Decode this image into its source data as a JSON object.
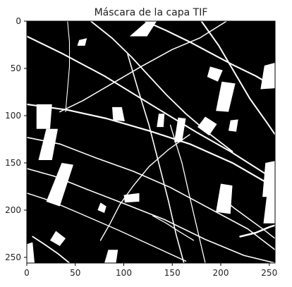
{
  "chart_data": {
    "type": "heatmap",
    "title": "Máscara de la capa TIF",
    "xlabel": "",
    "ylabel": "",
    "xlim": [
      0,
      256
    ],
    "ylim": [
      256,
      0
    ],
    "x_ticks": [
      {
        "value": 0,
        "label": "0"
      },
      {
        "value": 50,
        "label": "50"
      },
      {
        "value": 100,
        "label": "100"
      },
      {
        "value": 150,
        "label": "150"
      },
      {
        "value": 200,
        "label": "200"
      },
      {
        "value": 250,
        "label": "250"
      }
    ],
    "y_ticks": [
      {
        "value": 0,
        "label": "0"
      },
      {
        "value": 50,
        "label": "50"
      },
      {
        "value": 100,
        "label": "100"
      },
      {
        "value": 150,
        "label": "150"
      },
      {
        "value": 200,
        "label": "200"
      },
      {
        "value": 250,
        "label": "250"
      }
    ],
    "colormap": [
      "#000000",
      "#ffffff"
    ],
    "grid": false,
    "mask_white_regions": [
      {
        "points": [
          [
            106,
            16
          ],
          [
            124,
            0
          ],
          [
            134,
            0
          ],
          [
            124,
            16
          ]
        ]
      },
      {
        "points": [
          [
            10,
            88
          ],
          [
            26,
            88
          ],
          [
            24,
            114
          ],
          [
            10,
            114
          ]
        ]
      },
      {
        "points": [
          [
            20,
            114
          ],
          [
            32,
            114
          ],
          [
            26,
            147
          ],
          [
            12,
            147
          ]
        ]
      },
      {
        "points": [
          [
            36,
            150
          ],
          [
            48,
            152
          ],
          [
            34,
            196
          ],
          [
            20,
            191
          ]
        ]
      },
      {
        "points": [
          [
            88,
            91
          ],
          [
            98,
            91
          ],
          [
            101,
            106
          ],
          [
            89,
            105
          ]
        ]
      },
      {
        "points": [
          [
            136,
            98
          ],
          [
            142,
            98
          ],
          [
            141,
            112
          ],
          [
            134,
            112
          ]
        ]
      },
      {
        "points": [
          [
            156,
            102
          ],
          [
            164,
            103
          ],
          [
            160,
            128
          ],
          [
            152,
            128
          ]
        ]
      },
      {
        "points": [
          [
            184,
            101
          ],
          [
            196,
            109
          ],
          [
            188,
            121
          ],
          [
            176,
            112
          ]
        ]
      },
      {
        "points": [
          [
            189,
            48
          ],
          [
            202,
            52
          ],
          [
            197,
            64
          ],
          [
            186,
            59
          ]
        ]
      },
      {
        "points": [
          [
            201,
            64
          ],
          [
            215,
            66
          ],
          [
            208,
            96
          ],
          [
            195,
            95
          ]
        ]
      },
      {
        "points": [
          [
            245,
            47
          ],
          [
            256,
            44
          ],
          [
            256,
            71
          ],
          [
            241,
            72
          ]
        ]
      },
      {
        "points": [
          [
            246,
            150
          ],
          [
            256,
            148
          ],
          [
            256,
            186
          ],
          [
            243,
            186
          ]
        ]
      },
      {
        "points": [
          [
            248,
            180
          ],
          [
            256,
            180
          ],
          [
            256,
            214
          ],
          [
            244,
            214
          ]
        ]
      },
      {
        "points": [
          [
            200,
            172
          ],
          [
            212,
            174
          ],
          [
            210,
            204
          ],
          [
            195,
            202
          ]
        ]
      },
      {
        "points": [
          [
            100,
            184
          ],
          [
            116,
            182
          ],
          [
            116,
            191
          ],
          [
            101,
            192
          ]
        ]
      },
      {
        "points": [
          [
            30,
            222
          ],
          [
            40,
            230
          ],
          [
            34,
            238
          ],
          [
            24,
            232
          ]
        ]
      },
      {
        "points": [
          [
            84,
            242
          ],
          [
            94,
            242
          ],
          [
            92,
            256
          ],
          [
            80,
            256
          ]
        ]
      },
      {
        "points": [
          [
            0,
            236
          ],
          [
            6,
            234
          ],
          [
            8,
            256
          ],
          [
            0,
            256
          ]
        ]
      },
      {
        "points": [
          [
            76,
            192
          ],
          [
            82,
            196
          ],
          [
            80,
            203
          ],
          [
            73,
            200
          ]
        ]
      },
      {
        "points": [
          [
            54,
            20
          ],
          [
            62,
            18
          ],
          [
            60,
            26
          ],
          [
            52,
            26
          ]
        ]
      },
      {
        "points": [
          [
            210,
            105
          ],
          [
            218,
            104
          ],
          [
            216,
            117
          ],
          [
            208,
            116
          ]
        ]
      }
    ],
    "mask_white_lines": [
      {
        "points": [
          [
            0,
            16
          ],
          [
            36,
            34
          ],
          [
            80,
            58
          ],
          [
            126,
            87
          ],
          [
            174,
            117
          ],
          [
            210,
            138
          ],
          [
            256,
            168
          ]
        ],
        "width": 2.0
      },
      {
        "points": [
          [
            0,
            88
          ],
          [
            42,
            94
          ],
          [
            82,
            103
          ],
          [
            126,
            116
          ],
          [
            168,
            130
          ],
          [
            212,
            150
          ],
          [
            256,
            176
          ]
        ],
        "width": 2.2
      },
      {
        "points": [
          [
            0,
            123
          ],
          [
            34,
            130
          ],
          [
            72,
            145
          ],
          [
            110,
            159
          ],
          [
            148,
            176
          ],
          [
            188,
            198
          ],
          [
            228,
            220
          ],
          [
            256,
            242
          ]
        ],
        "width": 1.6
      },
      {
        "points": [
          [
            0,
            156
          ],
          [
            28,
            164
          ],
          [
            62,
            178
          ],
          [
            100,
            193
          ],
          [
            142,
            210
          ],
          [
            184,
            231
          ],
          [
            224,
            248
          ],
          [
            256,
            256
          ]
        ],
        "width": 1.6
      },
      {
        "points": [
          [
            0,
            182
          ],
          [
            24,
            190
          ],
          [
            58,
            205
          ],
          [
            94,
            221
          ],
          [
            130,
            238
          ],
          [
            164,
            254
          ]
        ],
        "width": 1.4
      },
      {
        "points": [
          [
            66,
            0
          ],
          [
            88,
            18
          ],
          [
            108,
            38
          ],
          [
            126,
            58
          ],
          [
            144,
            78
          ],
          [
            164,
            98
          ],
          [
            188,
            119
          ],
          [
            212,
            138
          ]
        ],
        "width": 1.8
      },
      {
        "points": [
          [
            122,
            0
          ],
          [
            144,
            10
          ],
          [
            168,
            22
          ],
          [
            190,
            34
          ],
          [
            212,
            46
          ],
          [
            236,
            58
          ],
          [
            256,
            70
          ]
        ],
        "width": 2.1
      },
      {
        "points": [
          [
            104,
            35
          ],
          [
            114,
            70
          ],
          [
            126,
            110
          ],
          [
            136,
            150
          ],
          [
            146,
            190
          ],
          [
            154,
            226
          ],
          [
            162,
            256
          ]
        ],
        "width": 1.6
      },
      {
        "points": [
          [
            148,
            110
          ],
          [
            160,
            150
          ],
          [
            168,
            186
          ],
          [
            176,
            221
          ],
          [
            184,
            256
          ]
        ],
        "width": 1.3
      },
      {
        "points": [
          [
            180,
            0
          ],
          [
            198,
            26
          ],
          [
            214,
            54
          ],
          [
            230,
            82
          ],
          [
            248,
            108
          ],
          [
            256,
            120
          ]
        ],
        "width": 2.0
      },
      {
        "points": [
          [
            34,
            96
          ],
          [
            58,
            84
          ],
          [
            88,
            66
          ],
          [
            118,
            48
          ],
          [
            150,
            30
          ],
          [
            178,
            18
          ],
          [
            206,
            0
          ]
        ],
        "width": 1.5
      },
      {
        "points": [
          [
            42,
            0
          ],
          [
            44,
            22
          ],
          [
            44,
            48
          ],
          [
            42,
            72
          ],
          [
            40,
            96
          ]
        ],
        "width": 1.1
      },
      {
        "points": [
          [
            76,
            232
          ],
          [
            86,
            214
          ],
          [
            96,
            194
          ],
          [
            110,
            174
          ],
          [
            126,
            154
          ],
          [
            146,
            136
          ],
          [
            168,
            120
          ]
        ],
        "width": 1.4
      },
      {
        "points": [
          [
            200,
            186
          ],
          [
            214,
            198
          ],
          [
            230,
            210
          ],
          [
            246,
            222
          ],
          [
            256,
            230
          ]
        ],
        "width": 1.5
      },
      {
        "points": [
          [
            6,
            228
          ],
          [
            18,
            236
          ],
          [
            32,
            246
          ],
          [
            44,
            256
          ]
        ],
        "width": 1.8
      },
      {
        "points": [
          [
            130,
            206
          ],
          [
            144,
            214
          ],
          [
            156,
            222
          ],
          [
            172,
            232
          ]
        ],
        "width": 1.3
      },
      {
        "points": [
          [
            220,
            228
          ],
          [
            236,
            224
          ],
          [
            250,
            218
          ],
          [
            256,
            216
          ]
        ],
        "width": 2.5
      }
    ]
  }
}
